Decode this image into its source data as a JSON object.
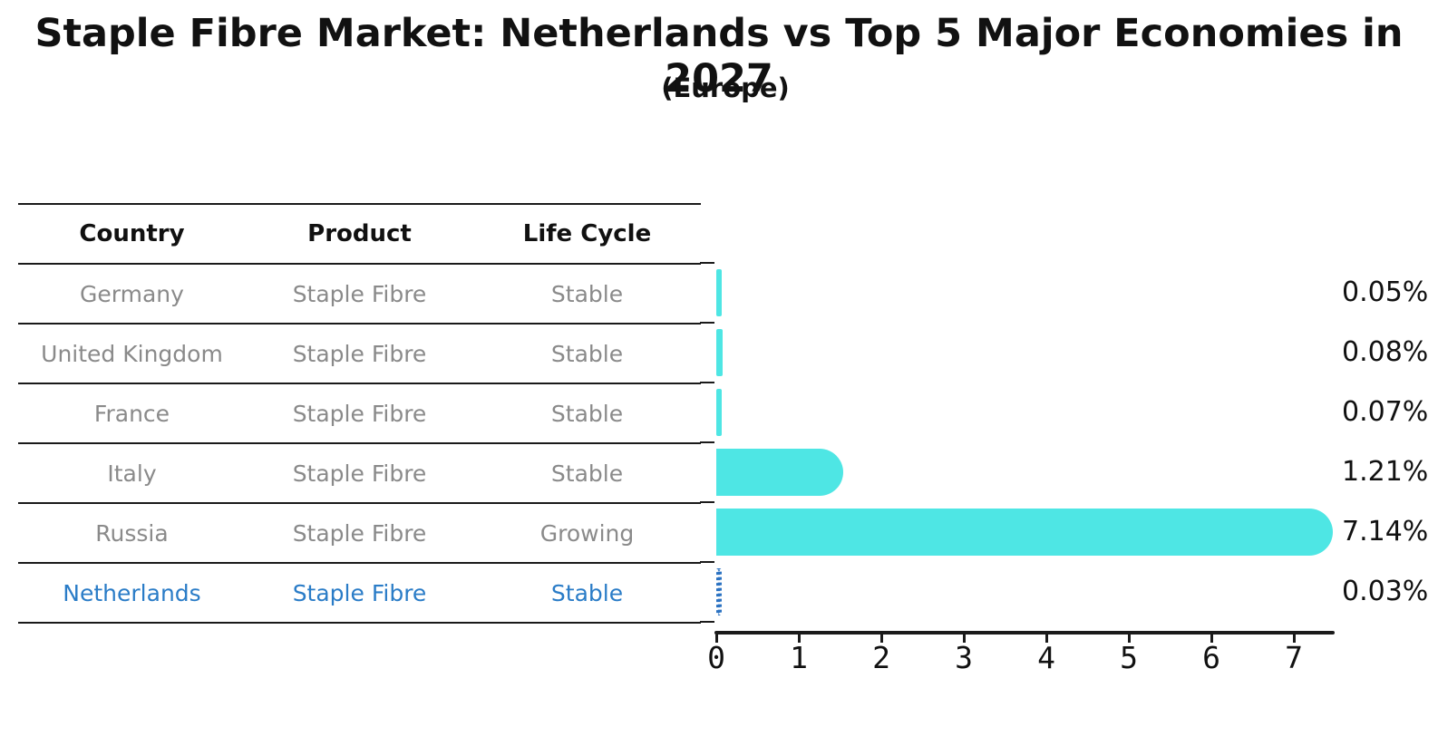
{
  "title": "Staple Fibre Market: Netherlands vs Top 5 Major Economies in 2027",
  "subtitle": "(Europe)",
  "table": {
    "headers": [
      "Country",
      "Product",
      "Life Cycle"
    ],
    "rows": [
      {
        "country": "Germany",
        "product": "Staple Fibre",
        "life_cycle": "Stable",
        "highlight": false
      },
      {
        "country": "United Kingdom",
        "product": "Staple Fibre",
        "life_cycle": "Stable",
        "highlight": false
      },
      {
        "country": "France",
        "product": "Staple Fibre",
        "life_cycle": "Stable",
        "highlight": false
      },
      {
        "country": "Italy",
        "product": "Staple Fibre",
        "life_cycle": "Stable",
        "highlight": false
      },
      {
        "country": "Russia",
        "product": "Staple Fibre",
        "life_cycle": "Growing",
        "highlight": false
      },
      {
        "country": "Netherlands",
        "product": "Staple Fibre",
        "life_cycle": "Stable",
        "highlight": true
      }
    ]
  },
  "chart_data": {
    "type": "bar",
    "orientation": "horizontal",
    "title": "Staple Fibre Market: Netherlands vs Top 5 Major Economies in 2027 (Europe)",
    "categories": [
      "Germany",
      "United Kingdom",
      "France",
      "Italy",
      "Russia",
      "Netherlands"
    ],
    "values": [
      0.05,
      0.08,
      0.07,
      1.21,
      7.14,
      0.03
    ],
    "value_labels": [
      "0.05%",
      "0.08%",
      "0.07%",
      "1.21%",
      "7.14%",
      "0.03%"
    ],
    "highlight_index": 5,
    "xlim": [
      0,
      7.5
    ],
    "x_ticks": [
      "0",
      "1",
      "2",
      "3",
      "4",
      "5",
      "6",
      "7"
    ],
    "grid": false,
    "legend": false
  },
  "colors": {
    "bar": "#4EE6E4",
    "highlight_blue": "#2A7CC7",
    "axis": "#1a1a1a",
    "row_text": "#8a8a8a",
    "label_text": "#111111"
  }
}
